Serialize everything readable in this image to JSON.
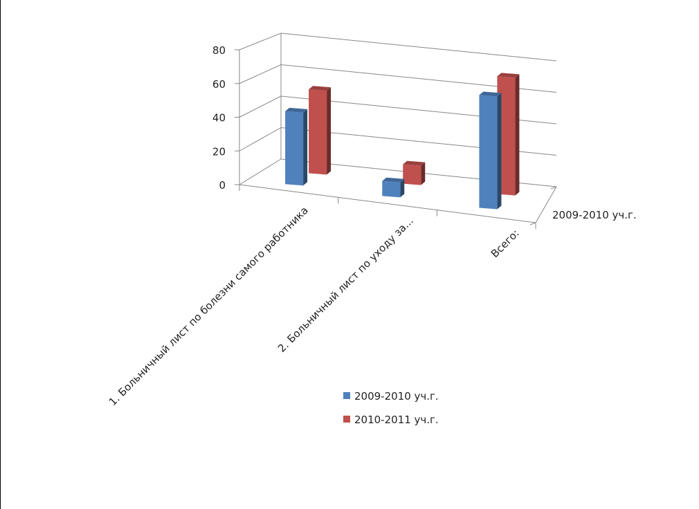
{
  "chart_data": {
    "type": "bar",
    "variant": "3d-clustered-column",
    "title": "",
    "xlabel": "",
    "ylabel": "",
    "categories": [
      "1. Больничный лист по болезни самого работника",
      "2. Больничный лист по уходу за...",
      "Всего:"
    ],
    "series": [
      {
        "name": "2009-2010 уч.г.",
        "values": [
          44,
          9,
          68
        ],
        "color": "#4f81bd"
      },
      {
        "name": "2010-2011 уч.г.",
        "values": [
          52,
          12,
          73
        ],
        "color": "#c0504d"
      }
    ],
    "ylim": [
      0,
      80
    ],
    "yticks": [
      0,
      20,
      40,
      60,
      80
    ],
    "depth_axis_label": "2009-2010 уч.г.",
    "grid": true,
    "legend_position": "bottom"
  }
}
